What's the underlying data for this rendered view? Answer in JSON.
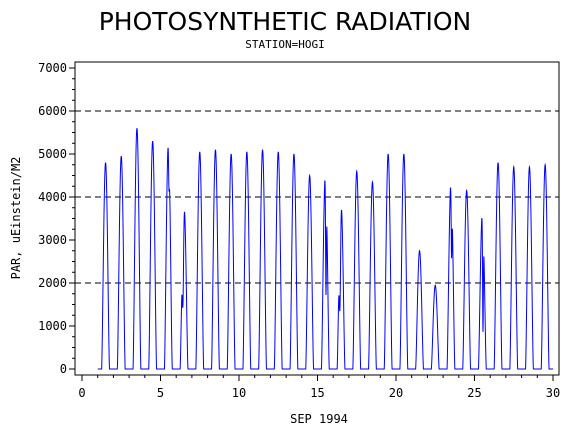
{
  "chart_data": {
    "type": "line",
    "title": "PHOTOSYNTHETIC RADIATION",
    "subtitle": "STATION=HOGI",
    "xlabel": "SEP 1994",
    "ylabel": "PAR, uEinstein/M2",
    "xlim": [
      0,
      30
    ],
    "ylim": [
      0,
      7000
    ],
    "x_ticks": [
      0,
      5,
      10,
      15,
      20,
      25,
      30
    ],
    "y_ticks": [
      0,
      1000,
      2000,
      3000,
      4000,
      5000,
      6000,
      7000
    ],
    "reference_lines": [
      2000,
      4000,
      6000
    ],
    "grid": false,
    "legend": "none",
    "series": [
      {
        "color": "#0000ff",
        "daily_peaks": [
          {
            "day": 1,
            "peak": 4800,
            "shape": "clear"
          },
          {
            "day": 2,
            "peak": 4950,
            "shape": "clear"
          },
          {
            "day": 3,
            "peak": 5600,
            "shape": "clear"
          },
          {
            "day": 4,
            "peak": 5300,
            "shape": "clear"
          },
          {
            "day": 5,
            "peak": 5250,
            "shape": "double",
            "dip": 4350
          },
          {
            "day": 6,
            "peak": 3850,
            "shape": "late",
            "dip": 1700
          },
          {
            "day": 7,
            "peak": 5050,
            "shape": "clear"
          },
          {
            "day": 8,
            "peak": 5100,
            "shape": "clear"
          },
          {
            "day": 9,
            "peak": 5000,
            "shape": "clear"
          },
          {
            "day": 10,
            "peak": 5050,
            "shape": "clear"
          },
          {
            "day": 11,
            "peak": 5100,
            "shape": "clear"
          },
          {
            "day": 12,
            "peak": 5050,
            "shape": "clear"
          },
          {
            "day": 13,
            "peak": 5000,
            "shape": "clear"
          },
          {
            "day": 14,
            "peak": 4500,
            "shape": "clear"
          },
          {
            "day": 15,
            "peak": 4550,
            "shape": "double",
            "dip": 1800
          },
          {
            "day": 16,
            "peak": 3900,
            "shape": "late",
            "dip": 1600
          },
          {
            "day": 17,
            "peak": 4600,
            "shape": "clear"
          },
          {
            "day": 18,
            "peak": 4350,
            "shape": "clear"
          },
          {
            "day": 19,
            "peak": 5000,
            "shape": "clear"
          },
          {
            "day": 20,
            "peak": 5000,
            "shape": "clear"
          },
          {
            "day": 21,
            "peak": 2750,
            "shape": "clear"
          },
          {
            "day": 22,
            "peak": 1950,
            "shape": "clear"
          },
          {
            "day": 23,
            "peak": 4350,
            "shape": "double",
            "dip": 2700
          },
          {
            "day": 24,
            "peak": 4150,
            "shape": "clear"
          },
          {
            "day": 25,
            "peak": 3650,
            "shape": "double",
            "dip": 900
          },
          {
            "day": 26,
            "peak": 4800,
            "shape": "clear"
          },
          {
            "day": 27,
            "peak": 4700,
            "shape": "clear"
          },
          {
            "day": 28,
            "peak": 4700,
            "shape": "clear"
          },
          {
            "day": 29,
            "peak": 4750,
            "shape": "clear"
          }
        ]
      }
    ]
  }
}
